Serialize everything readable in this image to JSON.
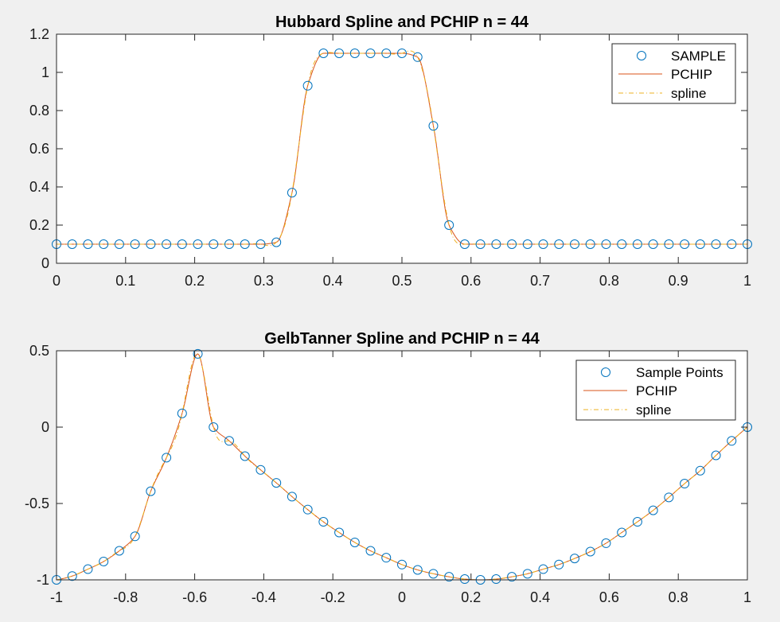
{
  "colors": {
    "sample": "#0072BD",
    "pchip": "#D95319",
    "spline": "#EDB120",
    "figure_bg": "#f0f0f0",
    "axes_bg": "#ffffff",
    "axis": "#262626"
  },
  "chart_data": [
    {
      "type": "line",
      "title": "Hubbard Spline and PCHIP n = 44",
      "xlim": [
        0,
        1
      ],
      "ylim": [
        0,
        1.2
      ],
      "xticks": [
        0,
        0.1,
        0.2,
        0.3,
        0.4,
        0.5,
        0.6,
        0.7,
        0.8,
        0.9,
        1
      ],
      "xtick_labels": [
        "0",
        "0.1",
        "0.2",
        "0.3",
        "0.4",
        "0.5",
        "0.6",
        "0.7",
        "0.8",
        "0.9",
        "1"
      ],
      "yticks": [
        0,
        0.2,
        0.4,
        0.6,
        0.8,
        1,
        1.2
      ],
      "ytick_labels": [
        "0",
        "0.2",
        "0.4",
        "0.6",
        "0.8",
        "1",
        "1.2"
      ],
      "grid": false,
      "legend_position": "top-right",
      "legend": [
        "SAMPLE",
        "PCHIP",
        "spline"
      ],
      "series": [
        {
          "name": "SAMPLE",
          "marker": "circle",
          "x": [
            0,
            0.0227,
            0.0455,
            0.0682,
            0.0909,
            0.1136,
            0.1364,
            0.1591,
            0.1818,
            0.2045,
            0.2273,
            0.25,
            0.2727,
            0.2955,
            0.3182,
            0.3409,
            0.3636,
            0.3864,
            0.4091,
            0.4318,
            0.4545,
            0.4773,
            0.5,
            0.5227,
            0.5455,
            0.5682,
            0.5909,
            0.6136,
            0.6364,
            0.6591,
            0.6818,
            0.7045,
            0.7273,
            0.75,
            0.7727,
            0.7955,
            0.8182,
            0.8409,
            0.8636,
            0.8864,
            0.9091,
            0.9318,
            0.9545,
            0.9773,
            1
          ],
          "y": [
            0.1,
            0.1,
            0.1,
            0.1,
            0.1,
            0.1,
            0.1,
            0.1,
            0.1,
            0.1,
            0.1,
            0.1,
            0.1,
            0.1,
            0.11,
            0.37,
            0.93,
            1.1,
            1.1,
            1.1,
            1.1,
            1.1,
            1.1,
            1.08,
            0.72,
            0.2,
            0.1,
            0.1,
            0.1,
            0.1,
            0.1,
            0.1,
            0.1,
            0.1,
            0.1,
            0.1,
            0.1,
            0.1,
            0.1,
            0.1,
            0.1,
            0.1,
            0.1,
            0.1,
            0.1
          ]
        },
        {
          "name": "PCHIP",
          "line": "solid"
        },
        {
          "name": "spline",
          "line": "dash-dot"
        }
      ]
    },
    {
      "type": "line",
      "title": "GelbTanner Spline and PCHIP n = 44",
      "xlim": [
        -1,
        1
      ],
      "ylim": [
        -1,
        0.5
      ],
      "xticks": [
        -1,
        -0.8,
        -0.6,
        -0.4,
        -0.2,
        0,
        0.2,
        0.4,
        0.6,
        0.8,
        1
      ],
      "xtick_labels": [
        "-1",
        "-0.8",
        "-0.6",
        "-0.4",
        "-0.2",
        "0",
        "0.2",
        "0.4",
        "0.6",
        "0.8",
        "1"
      ],
      "yticks": [
        -1,
        -0.5,
        0,
        0.5
      ],
      "ytick_labels": [
        "-1",
        "-0.5",
        "0",
        "0.5"
      ],
      "grid": false,
      "legend_position": "top-right",
      "legend": [
        "Sample Points",
        "PCHIP",
        "spline"
      ],
      "series": [
        {
          "name": "Sample Points",
          "marker": "circle",
          "x": [
            -1,
            -0.9545,
            -0.9091,
            -0.8636,
            -0.8182,
            -0.7727,
            -0.7273,
            -0.6818,
            -0.6364,
            -0.5909,
            -0.5455,
            -0.5,
            -0.4545,
            -0.4091,
            -0.3636,
            -0.3182,
            -0.2727,
            -0.2273,
            -0.1818,
            -0.1364,
            -0.0909,
            -0.0455,
            0,
            0.0455,
            0.0909,
            0.1364,
            0.1818,
            0.2273,
            0.2727,
            0.3182,
            0.3636,
            0.4091,
            0.4545,
            0.5,
            0.5455,
            0.5909,
            0.6364,
            0.6818,
            0.7273,
            0.7727,
            0.8182,
            0.8636,
            0.9091,
            0.9545,
            1
          ],
          "y": [
            -1.0,
            -0.975,
            -0.93,
            -0.88,
            -0.81,
            -0.715,
            -0.42,
            -0.2,
            0.09,
            0.48,
            0.0,
            -0.09,
            -0.19,
            -0.28,
            -0.365,
            -0.455,
            -0.54,
            -0.62,
            -0.69,
            -0.755,
            -0.81,
            -0.855,
            -0.9,
            -0.935,
            -0.96,
            -0.98,
            -0.995,
            -1.0,
            -0.995,
            -0.98,
            -0.96,
            -0.93,
            -0.9,
            -0.86,
            -0.815,
            -0.76,
            -0.69,
            -0.62,
            -0.545,
            -0.46,
            -0.37,
            -0.285,
            -0.185,
            -0.09,
            0.0
          ]
        },
        {
          "name": "PCHIP",
          "line": "solid"
        },
        {
          "name": "spline",
          "line": "dash-dot"
        }
      ]
    }
  ]
}
